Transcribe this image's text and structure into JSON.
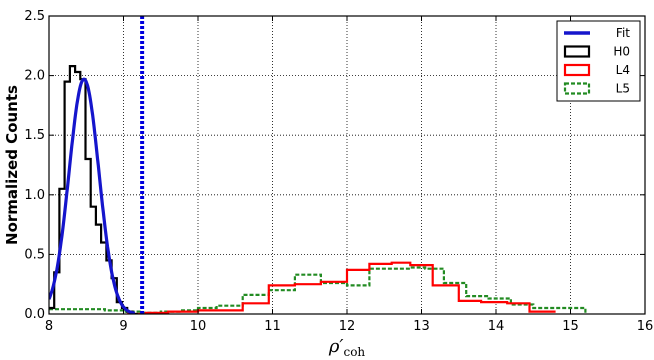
{
  "chart_data": {
    "type": "line",
    "xlabel": "ρ′coh",
    "xlabel_main": "ρ′",
    "xlabel_sub": "coh",
    "ylabel": "Normalized Counts",
    "xlim": [
      8,
      16
    ],
    "ylim": [
      0,
      2.5
    ],
    "xticks": [
      "8",
      "9",
      "10",
      "11",
      "12",
      "13",
      "14",
      "15",
      "16"
    ],
    "yticks": [
      "0.0",
      "0.5",
      "1.0",
      "1.5",
      "2.0",
      "2.5"
    ],
    "grid": true,
    "legend_position": "top-right",
    "vline": {
      "x": 9.25,
      "color": "#0000dd",
      "style": "dotted"
    },
    "series": [
      {
        "name": "Fit",
        "kind": "gaussian",
        "color": "#1515cc",
        "amplitude": 1.97,
        "mean": 8.47,
        "sigma": 0.2,
        "range": [
          8.0,
          9.15
        ]
      },
      {
        "name": "H0",
        "kind": "step",
        "color": "#000000",
        "style": "solid",
        "edges": [
          8.0,
          8.07,
          8.14,
          8.21,
          8.28,
          8.35,
          8.42,
          8.49,
          8.56,
          8.63,
          8.7,
          8.77,
          8.84,
          8.91,
          8.98,
          9.05,
          9.12,
          9.19
        ],
        "values": [
          0.05,
          0.35,
          1.05,
          1.95,
          2.08,
          2.03,
          1.97,
          1.3,
          0.9,
          0.75,
          0.6,
          0.45,
          0.3,
          0.1,
          0.05,
          0.02,
          0.0
        ]
      },
      {
        "name": "L4",
        "kind": "step",
        "color": "#ff0000",
        "style": "solid",
        "edges": [
          9.05,
          9.3,
          9.6,
          10.0,
          10.3,
          10.6,
          10.95,
          11.3,
          11.65,
          12.0,
          12.3,
          12.6,
          12.85,
          13.15,
          13.5,
          13.8,
          14.15,
          14.45,
          14.8
        ],
        "values": [
          0.0,
          0.01,
          0.02,
          0.03,
          0.03,
          0.09,
          0.24,
          0.25,
          0.27,
          0.37,
          0.42,
          0.43,
          0.41,
          0.24,
          0.11,
          0.1,
          0.09,
          0.02
        ]
      },
      {
        "name": "L5",
        "kind": "step",
        "color": "#228b22",
        "style": "dashed",
        "edges": [
          8.0,
          8.25,
          8.5,
          8.75,
          9.0,
          9.25,
          9.5,
          9.75,
          10.0,
          10.25,
          10.6,
          10.95,
          11.3,
          11.65,
          12.0,
          12.3,
          12.6,
          12.85,
          13.05,
          13.3,
          13.6,
          13.9,
          14.2,
          14.5,
          14.85,
          15.2
        ],
        "values": [
          0.04,
          0.04,
          0.04,
          0.03,
          0.02,
          0.01,
          0.02,
          0.03,
          0.05,
          0.07,
          0.16,
          0.2,
          0.33,
          0.26,
          0.24,
          0.38,
          0.38,
          0.39,
          0.38,
          0.26,
          0.15,
          0.13,
          0.08,
          0.05,
          0.05,
          0.0
        ]
      }
    ]
  }
}
